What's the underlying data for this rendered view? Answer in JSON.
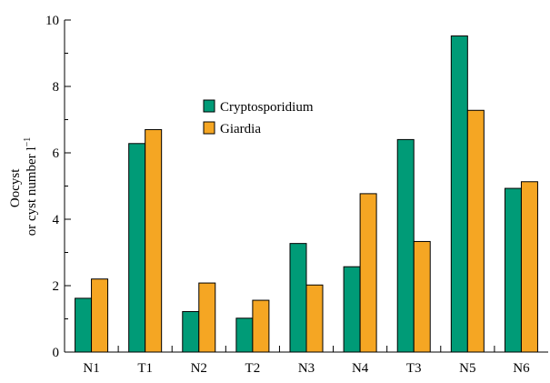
{
  "chart_data": {
    "type": "bar",
    "categories": [
      "N1",
      "T1",
      "N2",
      "T2",
      "N3",
      "N4",
      "T3",
      "N5",
      "N6"
    ],
    "series": [
      {
        "name": "Cryptosporidium",
        "color": "#009b77",
        "values": [
          1.62,
          6.28,
          1.22,
          1.02,
          3.27,
          2.57,
          6.4,
          9.52,
          4.93
        ]
      },
      {
        "name": "Giardia",
        "color": "#f5a623",
        "values": [
          2.2,
          6.7,
          2.08,
          1.56,
          2.02,
          4.77,
          3.33,
          7.28,
          5.13
        ]
      }
    ],
    "ylabel_line1": "Oocyst",
    "ylabel_line2": "or cyst number l",
    "ylabel_sup": "−1",
    "ylim": [
      0,
      10
    ],
    "yticks": [
      0,
      2,
      4,
      6,
      8,
      10
    ],
    "ytick_labels": [
      "0",
      "2",
      "4",
      "6",
      "8",
      "10"
    ],
    "grid": false,
    "legend_position": "upper-center"
  }
}
